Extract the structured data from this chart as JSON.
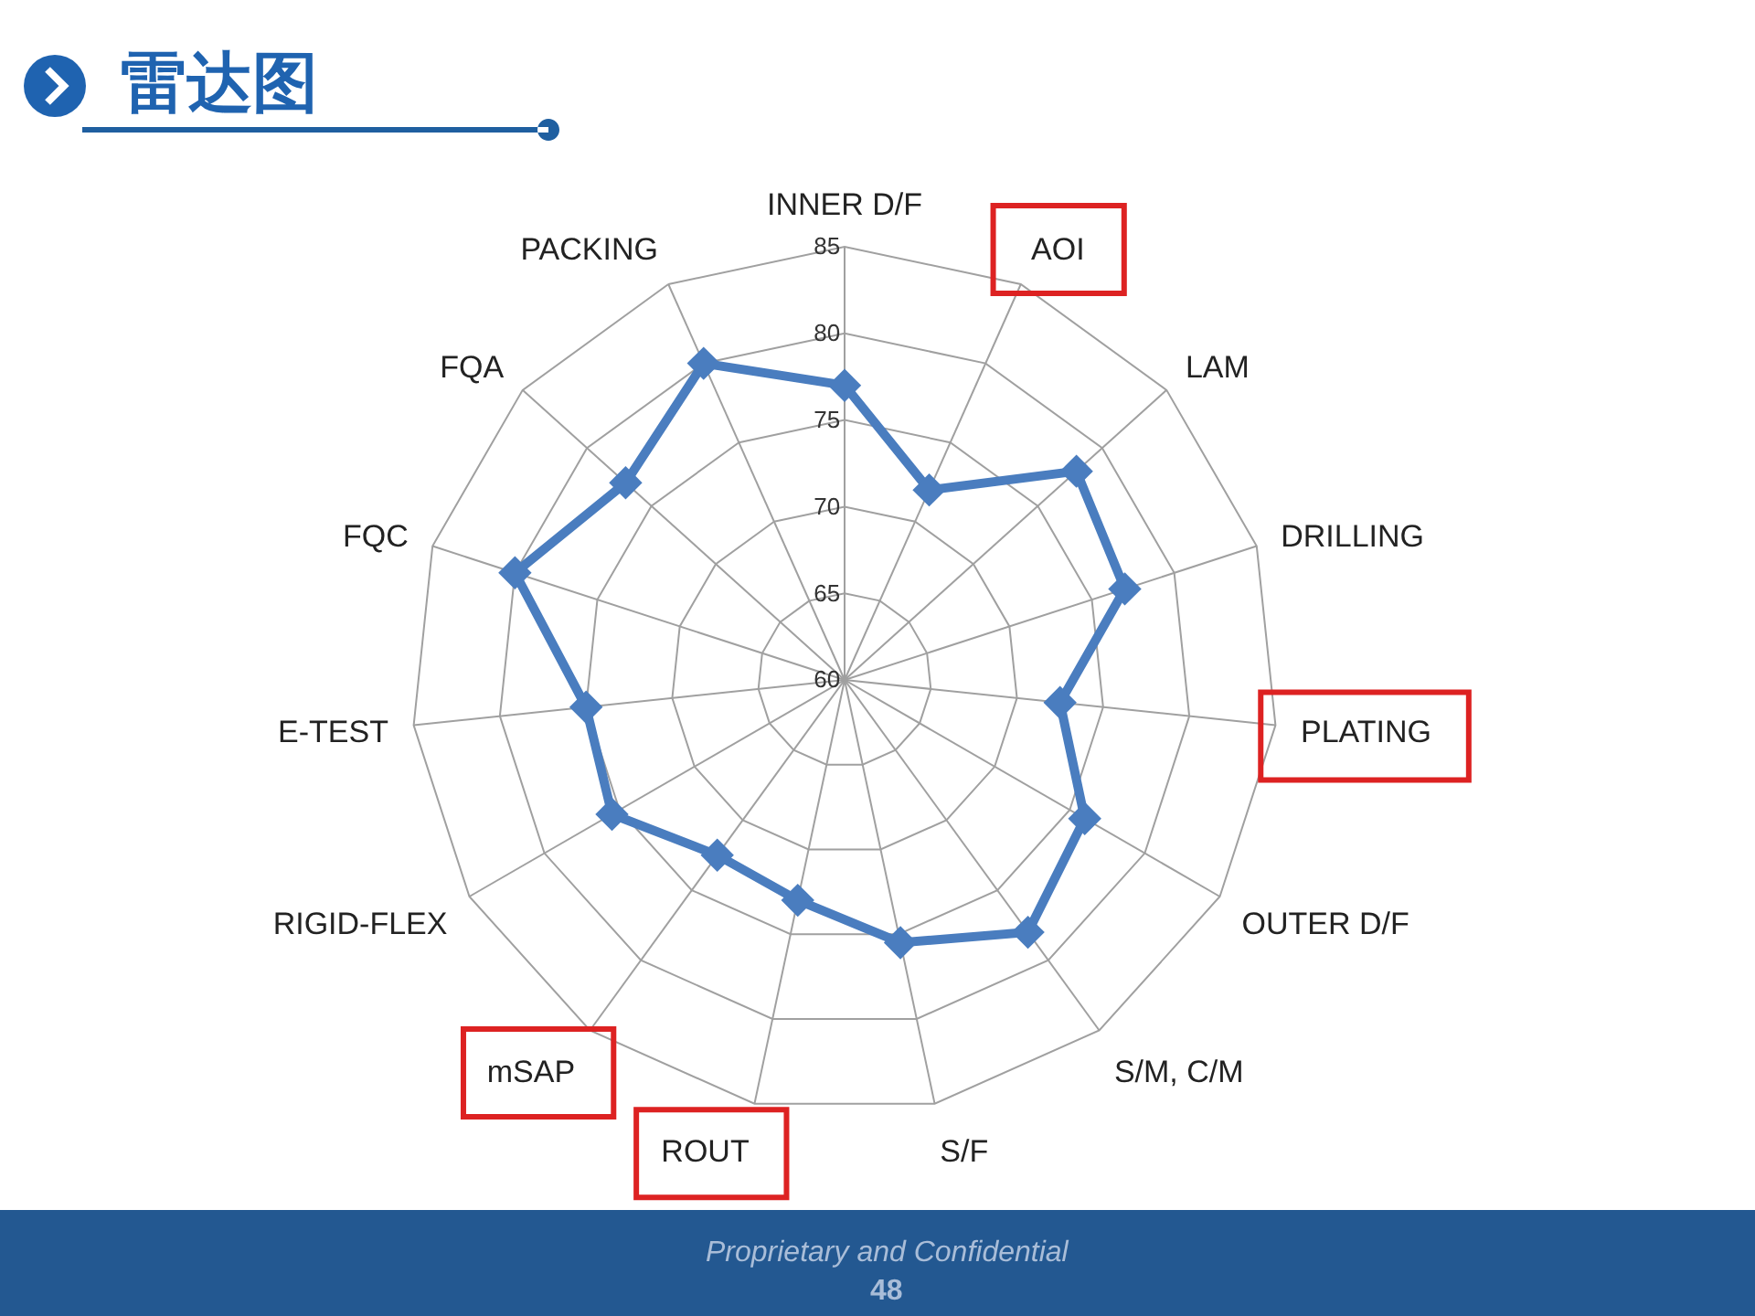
{
  "chart_data": {
    "type": "radar",
    "title": "雷达图",
    "categories": [
      "INNER D/F",
      "AOI",
      "LAM",
      "DRILLING",
      "PLATING",
      "OUTER D/F",
      "S/M, C/M",
      "S/F",
      "ROUT",
      "mSAP",
      "RIGID-FLEX",
      "E-TEST",
      "FQC",
      "FQA",
      "PACKING"
    ],
    "series": [
      {
        "color": "#4a7dbf",
        "values": [
          77,
          72,
          78,
          77,
          72.5,
          76,
          78,
          75.5,
          73,
          72.5,
          75.5,
          75,
          80,
          77,
          80
        ]
      }
    ],
    "ylim": [
      60,
      85
    ],
    "yticks": [
      60,
      65,
      70,
      75,
      80,
      85
    ],
    "grid": true,
    "marker": "diamond",
    "line_style": "solid",
    "annotations": [
      "Proprietary and Confidential",
      "48"
    ]
  }
}
